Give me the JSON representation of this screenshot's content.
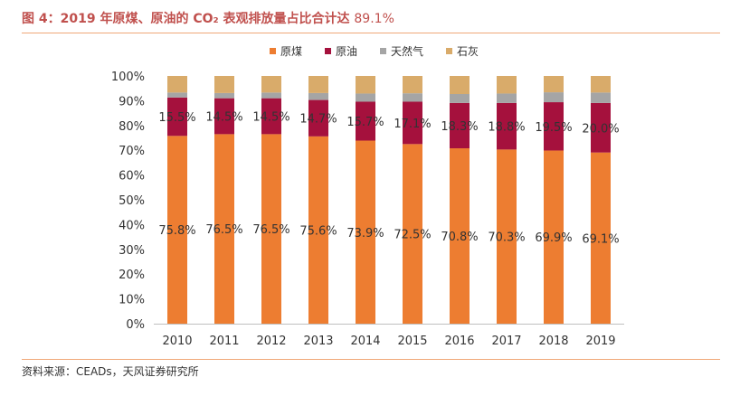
{
  "title": {
    "main": "图 4：2019 年原煤、原油的 CO₂ 表观排放量占比合计达",
    "pct": "89.1%"
  },
  "source": "资料来源：CEADs，天风证券研究所",
  "colors": {
    "title": "#c0504d",
    "rule": "#f0a878"
  },
  "chart_data": {
    "type": "bar",
    "stacked": true,
    "percent": true,
    "categories": [
      "2010",
      "2011",
      "2012",
      "2013",
      "2014",
      "2015",
      "2016",
      "2017",
      "2018",
      "2019"
    ],
    "ylim": [
      0,
      100
    ],
    "yticks": [
      "0%",
      "10%",
      "20%",
      "30%",
      "40%",
      "50%",
      "60%",
      "70%",
      "80%",
      "90%",
      "100%"
    ],
    "legend_position": "top-center",
    "grid": false,
    "series": [
      {
        "name": "原煤",
        "color": "#ed7d31",
        "values": [
          75.8,
          76.5,
          76.5,
          75.6,
          73.9,
          72.5,
          70.8,
          70.3,
          69.9,
          69.1
        ],
        "labels": [
          "75.8%",
          "76.5%",
          "76.5%",
          "75.6%",
          "73.9%",
          "72.5%",
          "70.8%",
          "70.3%",
          "69.9%",
          "69.1%"
        ]
      },
      {
        "name": "原油",
        "color": "#a5113d",
        "values": [
          15.5,
          14.5,
          14.5,
          14.7,
          15.7,
          17.1,
          18.3,
          18.8,
          19.5,
          20.0
        ],
        "labels": [
          "15.5%",
          "14.5%",
          "14.5%",
          "14.7%",
          "15.7%",
          "17.1%",
          "18.3%",
          "18.8%",
          "19.5%",
          "20.0%"
        ]
      },
      {
        "name": "天然气",
        "color": "#a5a5a5",
        "values": [
          2.0,
          2.1,
          2.3,
          2.8,
          3.3,
          3.4,
          3.6,
          3.8,
          4.0,
          4.2
        ]
      },
      {
        "name": "石灰",
        "color": "#d9ab6a",
        "values": [
          6.7,
          6.9,
          6.7,
          6.9,
          7.1,
          7.0,
          7.3,
          7.1,
          6.6,
          6.7
        ]
      }
    ]
  }
}
